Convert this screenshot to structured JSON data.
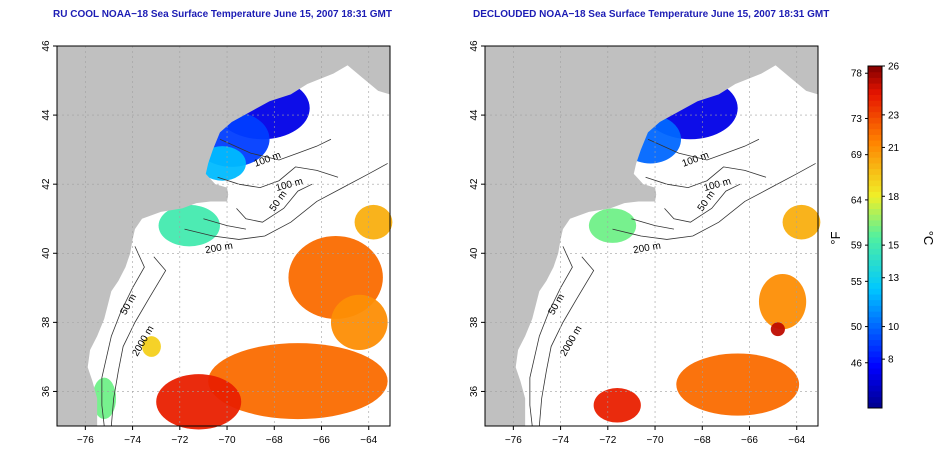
{
  "panels": [
    {
      "id": "rucool",
      "title": "RU COOL NOAA−18 Sea Surface Temperature June 15, 2007 18:31 GMT",
      "contour_labels": [
        "100 m",
        "100 m",
        "50 m",
        "200 m",
        "50 m",
        "2000 m"
      ]
    },
    {
      "id": "declouded",
      "title": "DECLOUDED NOAA−18 Sea Surface Temperature June 15, 2007 18:31 GMT",
      "contour_labels": [
        "100 m",
        "100 m",
        "50 m",
        "200 m",
        "50 m",
        "2000 m"
      ]
    }
  ],
  "axes": {
    "x_ticks": [
      "−76",
      "−74",
      "−72",
      "−70",
      "−68",
      "−66",
      "−64"
    ],
    "y_ticks": [
      "36",
      "38",
      "40",
      "42",
      "44",
      "46"
    ],
    "xlim": [
      -77.2,
      -63.1
    ],
    "ylim": [
      35,
      46
    ]
  },
  "colorbar": {
    "fahrenheit_ticks": [
      "78",
      "73",
      "69",
      "64",
      "59",
      "55",
      "50",
      "46"
    ],
    "celsius_ticks": [
      "26",
      "23",
      "21",
      "18",
      "15",
      "13",
      "10",
      "8"
    ],
    "celsius_range": [
      5,
      26
    ],
    "fahrenheit_unit": "°F",
    "celsius_unit": "°C"
  },
  "colors": {
    "land": "#c0c0c0",
    "ocean": "#ffffff",
    "title": "#1c1cb4",
    "grid": "#a0a0a0"
  }
}
